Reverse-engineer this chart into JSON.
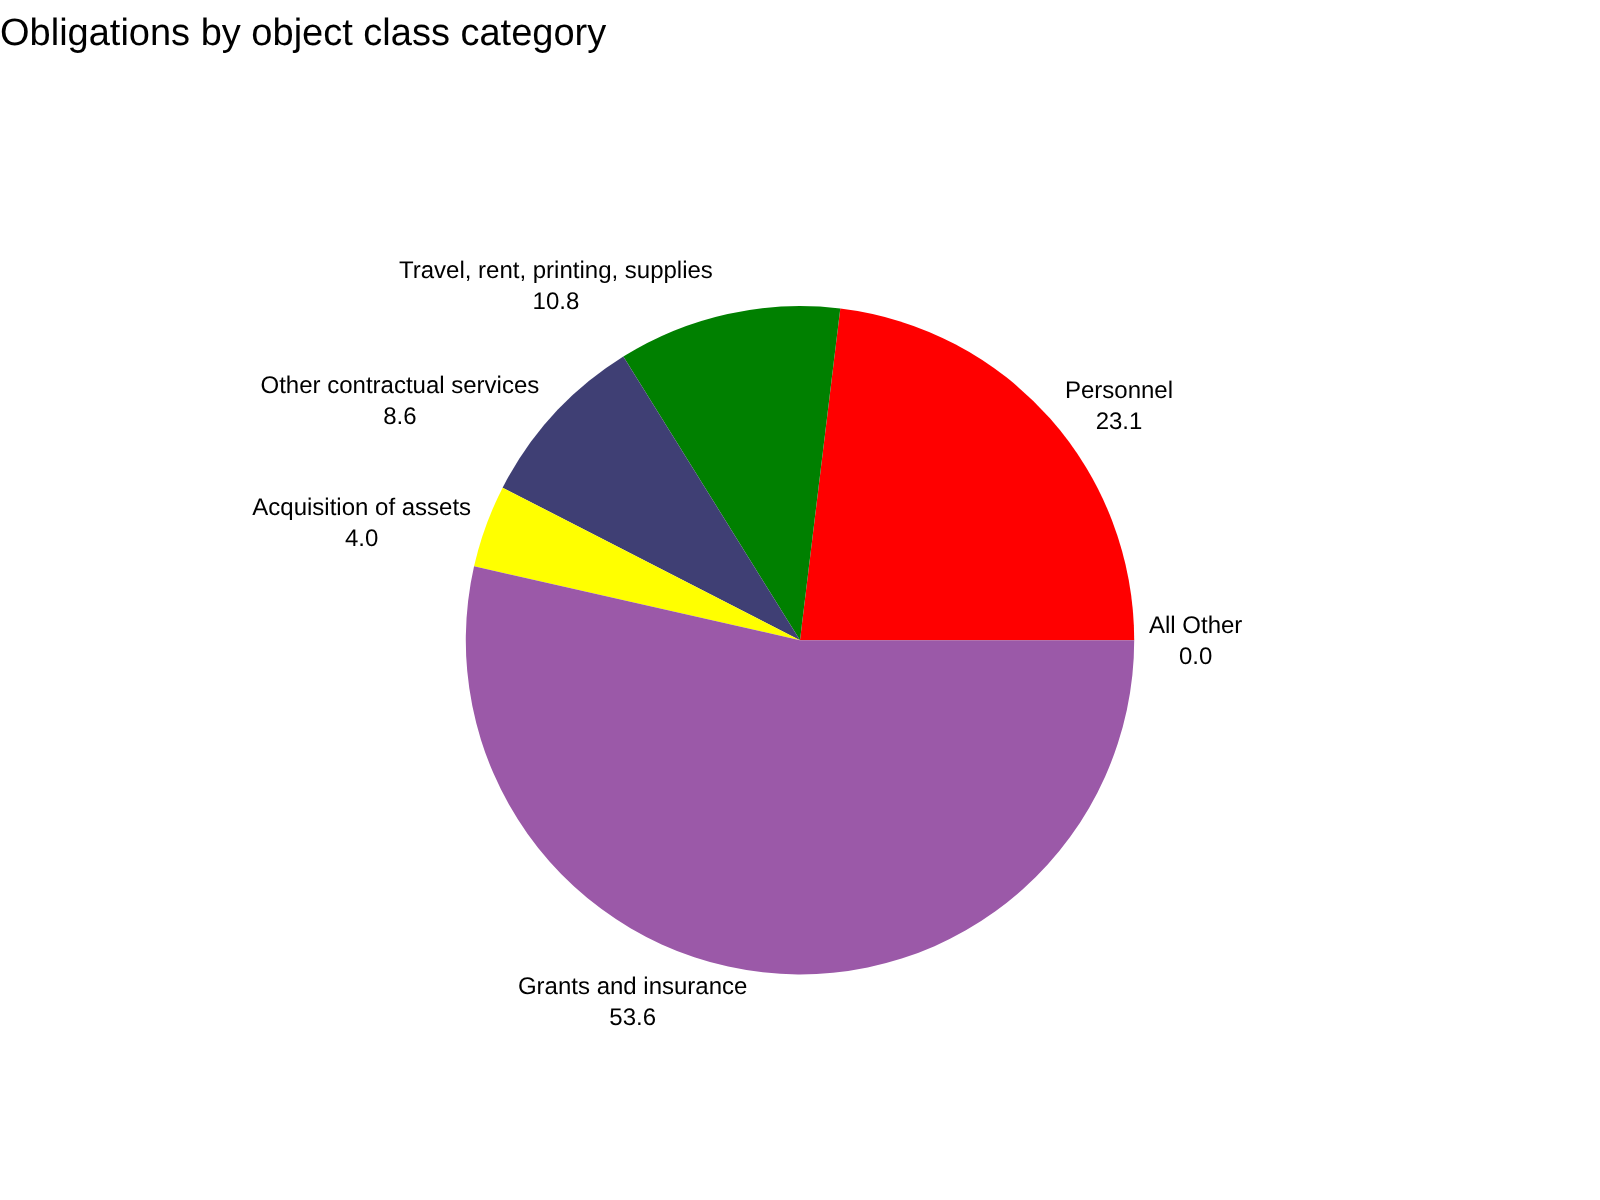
{
  "chart_data": {
    "type": "pie",
    "title": "Obligations by object class category",
    "categories": [
      "Personnel",
      "Travel, rent, printing, supplies",
      "Other contractual services",
      "Acquisition of assets",
      "Grants and insurance",
      "All Other"
    ],
    "values": [
      23.1,
      10.8,
      8.6,
      4.0,
      53.6,
      0.0
    ],
    "value_labels": [
      "23.1",
      "10.8",
      "8.6",
      "4.0",
      "53.6",
      "0.0"
    ],
    "colors": [
      "#ff0000",
      "#008000",
      "#3f3f74",
      "#ffff00",
      "#9b59a8",
      "#808080"
    ],
    "legend": false
  }
}
